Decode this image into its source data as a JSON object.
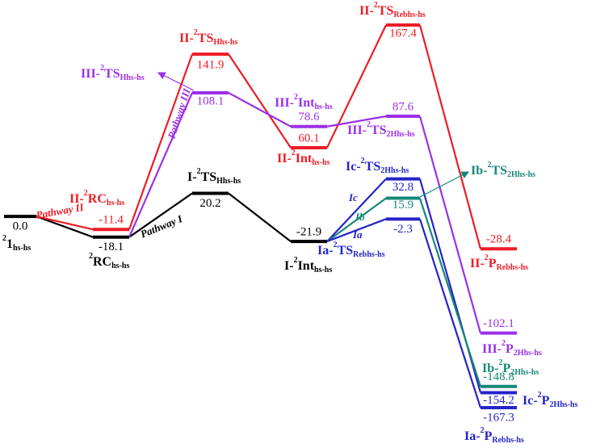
{
  "chart_data": {
    "type": "energy_profile",
    "series": [
      {
        "name": "Pathway I",
        "color": "#000000",
        "values": [
          0.0,
          -18.1,
          20.2,
          -21.9,
          null,
          null
        ],
        "value_labels": [
          "0.0",
          "-18.1",
          "20.2",
          "-21.9",
          null,
          null
        ],
        "labels": [
          [
            {
              "t": "2",
              "s": "sup"
            },
            {
              "t": "1"
            },
            {
              "t": "hs-hs",
              "s": "sub"
            }
          ],
          [
            {
              "t": "2",
              "s": "sup"
            },
            {
              "t": "RC"
            },
            {
              "t": "hs-hs",
              "s": "sub"
            }
          ],
          [
            {
              "t": "I-"
            },
            {
              "t": "2",
              "s": "sup"
            },
            {
              "t": "TS"
            },
            {
              "t": "Hhs-hs",
              "s": "sub"
            }
          ],
          [
            {
              "t": "I-"
            },
            {
              "t": "2",
              "s": "sup"
            },
            {
              "t": "Int"
            },
            {
              "t": "hs-hs",
              "s": "sub"
            }
          ],
          null,
          null
        ]
      },
      {
        "name": "Pathway II",
        "color": "#ee1c25",
        "values": [
          null,
          -11.4,
          141.9,
          60.1,
          167.4,
          -28.4
        ],
        "labels": [
          null,
          [
            {
              "t": "II-"
            },
            {
              "t": "2",
              "s": "sup"
            },
            {
              "t": "RC"
            },
            {
              "t": "hs-hs",
              "s": "sub"
            }
          ],
          [
            {
              "t": "II-"
            },
            {
              "t": "2",
              "s": "sup"
            },
            {
              "t": "TS"
            },
            {
              "t": "Hhs-hs",
              "s": "sub"
            }
          ],
          [
            {
              "t": "II-"
            },
            {
              "t": "2",
              "s": "sup"
            },
            {
              "t": "Int"
            },
            {
              "t": "hs-hs",
              "s": "sub"
            }
          ],
          [
            {
              "t": "II-"
            },
            {
              "t": "2",
              "s": "sup"
            },
            {
              "t": "TS"
            },
            {
              "t": "Rebhs-hs",
              "s": "sub"
            }
          ],
          [
            {
              "t": "II-"
            },
            {
              "t": "2",
              "s": "sup"
            },
            {
              "t": "P"
            },
            {
              "t": "Rebhs-hs",
              "s": "sub"
            }
          ]
        ]
      },
      {
        "name": "Pathway III",
        "color": "#9b30e8",
        "values": [
          null,
          null,
          108.1,
          78.6,
          87.6,
          -102.1
        ],
        "labels": [
          null,
          null,
          [
            {
              "t": "III-"
            },
            {
              "t": "2",
              "s": "sup"
            },
            {
              "t": "TS"
            },
            {
              "t": "Hhs-hs",
              "s": "sub"
            }
          ],
          [
            {
              "t": "III-"
            },
            {
              "t": "2",
              "s": "sup"
            },
            {
              "t": "Int"
            },
            {
              "t": "hs-hs",
              "s": "sub"
            }
          ],
          [
            {
              "t": "III-"
            },
            {
              "t": "2",
              "s": "sup"
            },
            {
              "t": "TS"
            },
            {
              "t": "2Hhs-hs",
              "s": "sub"
            }
          ],
          [
            {
              "t": "III-"
            },
            {
              "t": "2",
              "s": "sup"
            },
            {
              "t": "P"
            },
            {
              "t": "2Hhs-hs",
              "s": "sub"
            }
          ]
        ]
      },
      {
        "name": "Ic",
        "color": "#2424c8",
        "values": [
          null,
          null,
          null,
          null,
          32.8,
          -154.2
        ],
        "labels": [
          null,
          null,
          null,
          null,
          [
            {
              "t": "Ic-"
            },
            {
              "t": "2",
              "s": "sup"
            },
            {
              "t": "TS"
            },
            {
              "t": "2Hhs-hs",
              "s": "sub"
            }
          ],
          [
            {
              "t": "Ic-"
            },
            {
              "t": "2",
              "s": "sup"
            },
            {
              "t": "P"
            },
            {
              "t": "2Hhs-hs",
              "s": "sub"
            }
          ]
        ]
      },
      {
        "name": "Ib",
        "color": "#178878",
        "values": [
          null,
          null,
          null,
          null,
          15.9,
          -148.8
        ],
        "labels": [
          null,
          null,
          null,
          null,
          [
            {
              "t": "Ib-"
            },
            {
              "t": "2",
              "s": "sup"
            },
            {
              "t": "TS"
            },
            {
              "t": "2Hhs-hs",
              "s": "sub"
            }
          ],
          [
            {
              "t": "Ib-"
            },
            {
              "t": "2",
              "s": "sup"
            },
            {
              "t": "P"
            },
            {
              "t": "2Hhs-hs",
              "s": "sub"
            }
          ]
        ]
      },
      {
        "name": "Ia",
        "color": "#2424c8",
        "values": [
          null,
          null,
          null,
          null,
          -2.3,
          -167.3
        ],
        "labels": [
          null,
          null,
          null,
          null,
          [
            {
              "t": "Ia-"
            },
            {
              "t": "2",
              "s": "sup"
            },
            {
              "t": "TS"
            },
            {
              "t": "Rebhs-hs",
              "s": "sub"
            }
          ],
          [
            {
              "t": "Ia-"
            },
            {
              "t": "2",
              "s": "sup"
            },
            {
              "t": "P"
            },
            {
              "t": "Rebhs-hs",
              "s": "sub"
            }
          ]
        ]
      }
    ]
  }
}
